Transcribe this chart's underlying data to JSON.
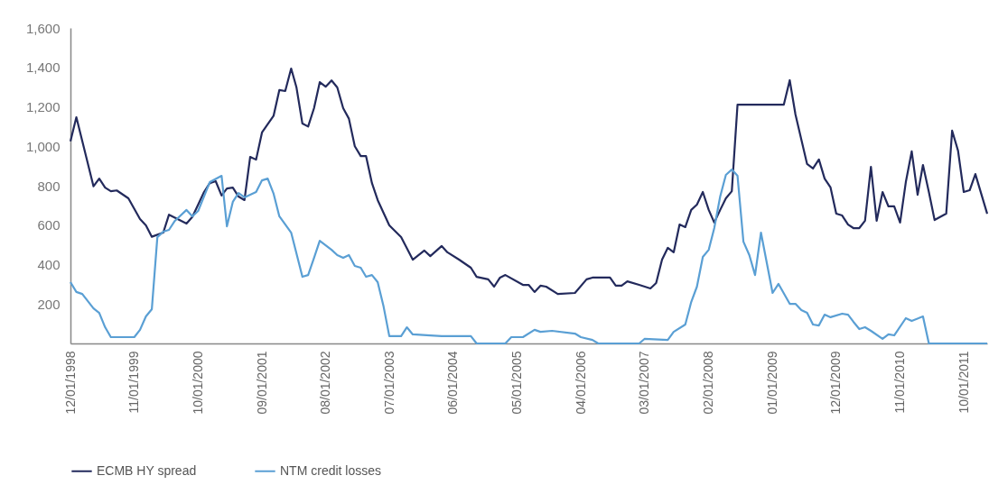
{
  "chart_data": {
    "type": "line",
    "legend": "bottom left",
    "line_style": "solid",
    "ylim": [
      0,
      1600
    ],
    "yticks": [
      {
        "value": 200,
        "label": "200"
      },
      {
        "value": 400,
        "label": "400"
      },
      {
        "value": 600,
        "label": "600"
      },
      {
        "value": 800,
        "label": "800"
      },
      {
        "value": 1000,
        "label": "1,000"
      },
      {
        "value": 1200,
        "label": "1,200"
      },
      {
        "value": 1400,
        "label": "1,400"
      },
      {
        "value": 1600,
        "label": "1,600"
      }
    ],
    "xlim": [
      "1998-12",
      "2012-02"
    ],
    "xticks": [
      {
        "value": "1998-12",
        "label": "12/01/1998"
      },
      {
        "value": "1999-11",
        "label": "11/01/1999"
      },
      {
        "value": "2000-10",
        "label": "10/01/2000"
      },
      {
        "value": "2001-09",
        "label": "09/01/2001"
      },
      {
        "value": "2002-08",
        "label": "08/01/2002"
      },
      {
        "value": "2003-07",
        "label": "07/01/2003"
      },
      {
        "value": "2004-06",
        "label": "06/01/2004"
      },
      {
        "value": "2005-05",
        "label": "05/01/2005"
      },
      {
        "value": "2006-04",
        "label": "04/01/2006"
      },
      {
        "value": "2007-03",
        "label": "03/01/2007"
      },
      {
        "value": "2008-02",
        "label": "02/01/2008"
      },
      {
        "value": "2009-01",
        "label": "01/01/2009"
      },
      {
        "value": "2009-12",
        "label": "12/01/2009"
      },
      {
        "value": "2010-11",
        "label": "11/01/2010"
      },
      {
        "value": "2011-10",
        "label": "10/01/2011"
      }
    ],
    "series": [
      {
        "name": "ECMB HY spread",
        "color": "#232a5c",
        "x": [
          "1998-12",
          "1999-01",
          "1999-04",
          "1999-05",
          "1999-06",
          "1999-07",
          "1999-08",
          "1999-10",
          "1999-12",
          "2000-01",
          "2000-02",
          "2000-04",
          "2000-05",
          "2000-06",
          "2000-08",
          "2000-09",
          "2000-11",
          "2000-12",
          "2001-01",
          "2001-02",
          "2001-03",
          "2001-04",
          "2001-05",
          "2001-06",
          "2001-07",
          "2001-08",
          "2001-09",
          "2001-11",
          "2001-12",
          "2002-01",
          "2002-02",
          "2002-03",
          "2002-04",
          "2002-05",
          "2002-06",
          "2002-07",
          "2002-08",
          "2002-09",
          "2002-10",
          "2002-11",
          "2002-12",
          "2003-01",
          "2003-02",
          "2003-03",
          "2003-04",
          "2003-05",
          "2003-07",
          "2003-09",
          "2003-11",
          "2004-01",
          "2004-02",
          "2004-04",
          "2004-05",
          "2004-07",
          "2004-09",
          "2004-10",
          "2004-12",
          "2005-01",
          "2005-02",
          "2005-03",
          "2005-06",
          "2005-07",
          "2005-08",
          "2005-09",
          "2005-10",
          "2005-12",
          "2006-03",
          "2006-05",
          "2006-06",
          "2006-07",
          "2006-09",
          "2006-10",
          "2006-11",
          "2006-12",
          "2007-02",
          "2007-04",
          "2007-05",
          "2007-06",
          "2007-07",
          "2007-08",
          "2007-09",
          "2007-10",
          "2007-11",
          "2007-12",
          "2008-01",
          "2008-02",
          "2008-03",
          "2008-04",
          "2008-05",
          "2008-06",
          "2008-07",
          "2009-03",
          "2009-04",
          "2009-05",
          "2009-07",
          "2009-08",
          "2009-09",
          "2009-10",
          "2009-11",
          "2009-12",
          "2010-01",
          "2010-02",
          "2010-03",
          "2010-04",
          "2010-05",
          "2010-06",
          "2010-07",
          "2010-08",
          "2010-09",
          "2010-10",
          "2010-11",
          "2010-12",
          "2011-01",
          "2011-02",
          "2011-03",
          "2011-04",
          "2011-05",
          "2011-07",
          "2011-08",
          "2011-09",
          "2011-10",
          "2011-11",
          "2011-12",
          "2012-02"
        ],
        "values": [
          1025,
          1147,
          797,
          836,
          790,
          772,
          776,
          736,
          631,
          599,
          541,
          562,
          653,
          638,
          608,
          642,
          768,
          813,
          823,
          750,
          786,
          790,
          745,
          727,
          946,
          932,
          1070,
          1155,
          1285,
          1280,
          1394,
          1298,
          1115,
          1100,
          1193,
          1325,
          1302,
          1334,
          1298,
          1193,
          1140,
          1000,
          950,
          950,
          813,
          727,
          599,
          539,
          425,
          471,
          443,
          494,
          462,
          425,
          384,
          338,
          325,
          288,
          334,
          347,
          297,
          297,
          261,
          293,
          288,
          251,
          256,
          325,
          334,
          334,
          334,
          293,
          293,
          315,
          297,
          279,
          306,
          425,
          485,
          462,
          603,
          590,
          677,
          704,
          768,
          677,
          613,
          677,
          736,
          772,
          1211,
          1211,
          1335,
          1161,
          910,
          887,
          933,
          836,
          791,
          658,
          649,
          603,
          585,
          585,
          622,
          896,
          622,
          768,
          695,
          695,
          613,
          818,
          974,
          754,
          905,
          768,
          626,
          658,
          1079,
          978,
          768,
          777,
          859,
          658
        ]
      },
      {
        "name": "NTM credit losses",
        "color": "#5a9fd4",
        "x": [
          "1998-12",
          "1999-01",
          "1999-02",
          "1999-04",
          "1999-05",
          "1999-06",
          "1999-07",
          "1999-11",
          "1999-12",
          "2000-01",
          "2000-02",
          "2000-03",
          "2000-04",
          "2000-05",
          "2000-06",
          "2000-08",
          "2000-09",
          "2000-10",
          "2000-12",
          "2001-02",
          "2001-03",
          "2001-04",
          "2001-05",
          "2001-06",
          "2001-08",
          "2001-09",
          "2001-10",
          "2001-11",
          "2001-12",
          "2002-02",
          "2002-04",
          "2002-05",
          "2002-06",
          "2002-07",
          "2002-09",
          "2002-10",
          "2002-11",
          "2002-12",
          "2003-01",
          "2003-02",
          "2003-03",
          "2003-04",
          "2003-05",
          "2003-06",
          "2003-07",
          "2003-09",
          "2003-10",
          "2003-11",
          "2004-02",
          "2004-04",
          "2004-09",
          "2004-10",
          "2005-03",
          "2005-04",
          "2005-06",
          "2005-08",
          "2005-09",
          "2005-11",
          "2006-03",
          "2006-04",
          "2006-06",
          "2006-07",
          "2007-02",
          "2007-03",
          "2007-07",
          "2007-08",
          "2007-10",
          "2007-11",
          "2007-12",
          "2008-01",
          "2008-02",
          "2008-03",
          "2008-04",
          "2008-05",
          "2008-06",
          "2008-07",
          "2008-08",
          "2008-09",
          "2008-10",
          "2008-11",
          "2009-01",
          "2009-02",
          "2009-04",
          "2009-05",
          "2009-06",
          "2009-07",
          "2009-08",
          "2009-09",
          "2009-10",
          "2009-11",
          "2010-01",
          "2010-02",
          "2010-03",
          "2010-04",
          "2010-05",
          "2010-06",
          "2010-08",
          "2010-09",
          "2010-10",
          "2010-12",
          "2011-01",
          "2011-03",
          "2011-04",
          "2012-02"
        ],
        "values": [
          311,
          261,
          251,
          178,
          155,
          82,
          32,
          32,
          69,
          137,
          174,
          539,
          567,
          576,
          622,
          677,
          645,
          672,
          818,
          850,
          594,
          718,
          763,
          741,
          768,
          827,
          836,
          759,
          645,
          562,
          338,
          347,
          434,
          521,
          475,
          448,
          434,
          448,
          393,
          384,
          338,
          347,
          311,
          187,
          37,
          37,
          82,
          46,
          41,
          37,
          37,
          0,
          0,
          32,
          32,
          69,
          59,
          64,
          50,
          32,
          18,
          0,
          0,
          23,
          18,
          59,
          96,
          210,
          288,
          439,
          475,
          585,
          745,
          855,
          882,
          850,
          516,
          448,
          347,
          562,
          256,
          302,
          201,
          201,
          169,
          155,
          96,
          91,
          146,
          133,
          151,
          146,
          110,
          73,
          82,
          64,
          23,
          46,
          41,
          128,
          114,
          137,
          0,
          0
        ]
      }
    ]
  }
}
